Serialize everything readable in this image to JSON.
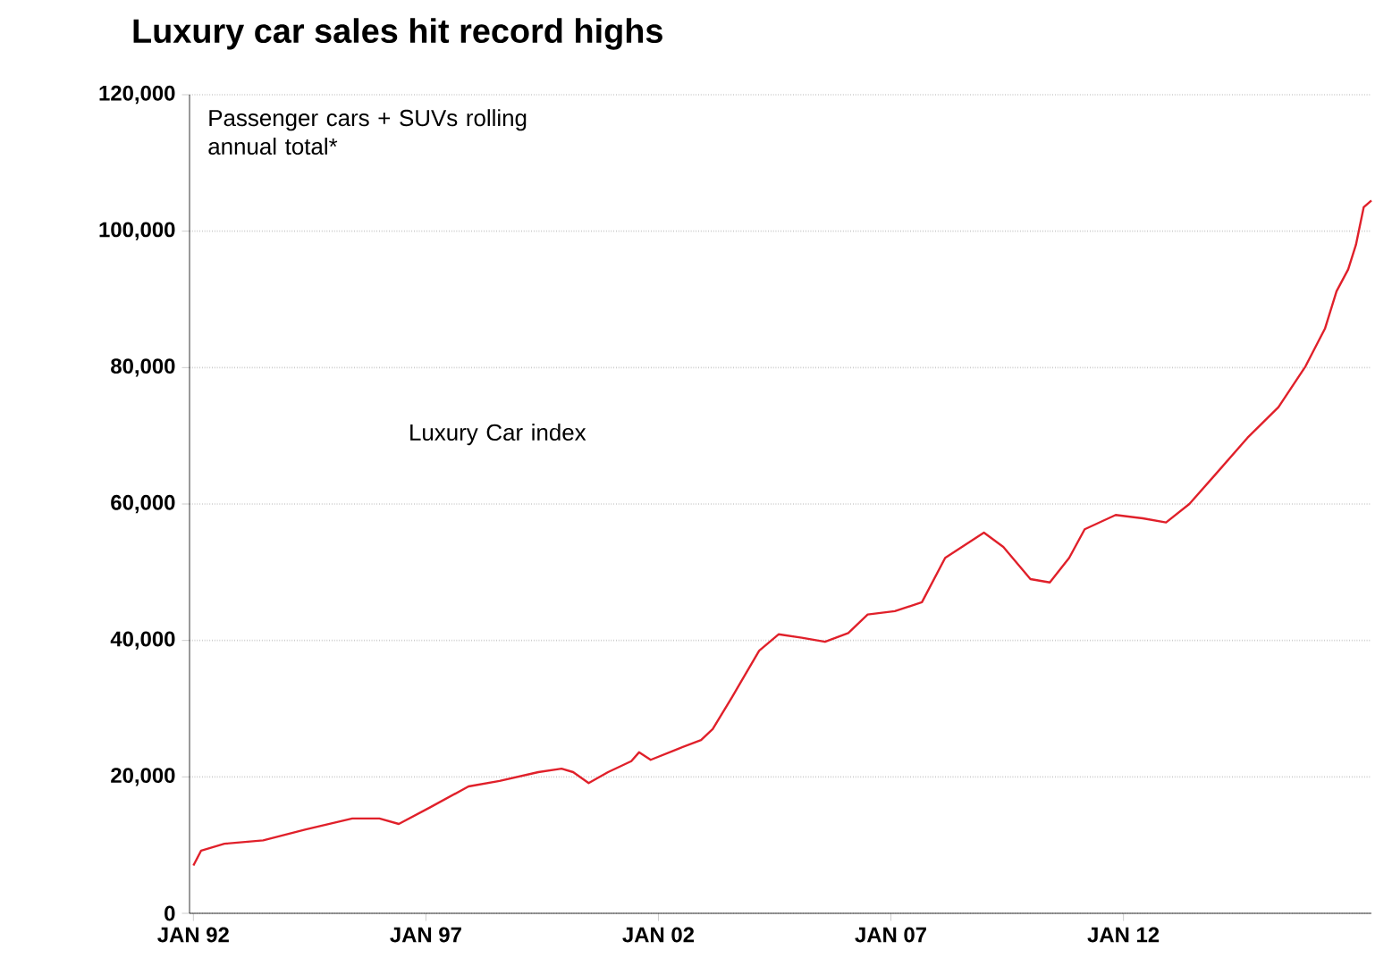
{
  "chart_data": {
    "type": "line",
    "title": "Luxury car sales hit record highs",
    "annotations": [
      "Passenger cars + SUVs rolling annual total*",
      "Luxury Car index"
    ],
    "x": [
      "1992-01",
      "1992-03",
      "1992-09",
      "1993-07",
      "1994-06",
      "1995-06",
      "1996-01",
      "1996-06",
      "1997-02",
      "1997-12",
      "1998-08",
      "1999-06",
      "1999-12",
      "2000-03",
      "2000-07",
      "2000-12",
      "2001-06",
      "2001-08",
      "2001-11",
      "2002-06",
      "2002-12",
      "2003-03",
      "2003-08",
      "2004-03",
      "2004-08",
      "2005-02",
      "2005-08",
      "2006-02",
      "2006-07",
      "2007-02",
      "2007-09",
      "2008-03",
      "2009-01",
      "2009-06",
      "2010-01",
      "2010-06",
      "2010-11",
      "2011-03",
      "2011-11",
      "2012-06",
      "2012-12",
      "2013-06",
      "2014-01",
      "2014-09",
      "2015-05",
      "2015-12",
      "2016-05",
      "2016-08",
      "2016-11",
      "2017-01",
      "2017-03",
      "2017-05"
    ],
    "series": [
      {
        "color": "#e0202a",
        "values": [
          7000,
          9200,
          10200,
          10700,
          12300,
          13900,
          13900,
          13100,
          15500,
          18600,
          19400,
          20700,
          21200,
          20700,
          19100,
          20700,
          22300,
          23600,
          22500,
          24100,
          25400,
          27000,
          31700,
          38500,
          40900,
          40400,
          39800,
          41100,
          43800,
          44300,
          45600,
          52100,
          55800,
          53700,
          49000,
          48500,
          52100,
          56300,
          58400,
          57900,
          57300,
          60000,
          64500,
          69700,
          74200,
          80200,
          85700,
          91200,
          94400,
          98000,
          103500,
          104500
        ]
      }
    ],
    "xlim": [
      "1991-12",
      "2017-05"
    ],
    "xticks": [
      {
        "value": "1992-01",
        "label": "JAN 92"
      },
      {
        "value": "1997-01",
        "label": "JAN 97"
      },
      {
        "value": "2002-01",
        "label": "JAN 02"
      },
      {
        "value": "2007-01",
        "label": "JAN 07"
      },
      {
        "value": "2012-01",
        "label": "JAN 12"
      }
    ],
    "ylim": [
      0,
      120000
    ],
    "yticks": [
      0,
      {
        "value": 20000,
        "label": "20,000"
      },
      {
        "value": 40000,
        "label": "40,000"
      },
      {
        "value": 60000,
        "label": "60,000"
      },
      {
        "value": 80000,
        "label": "80,000"
      },
      {
        "value": 100000,
        "label": "100,000"
      },
      {
        "value": 120000,
        "label": "120,000"
      }
    ],
    "grid": "y",
    "marker": "none",
    "line_style": "solid"
  }
}
